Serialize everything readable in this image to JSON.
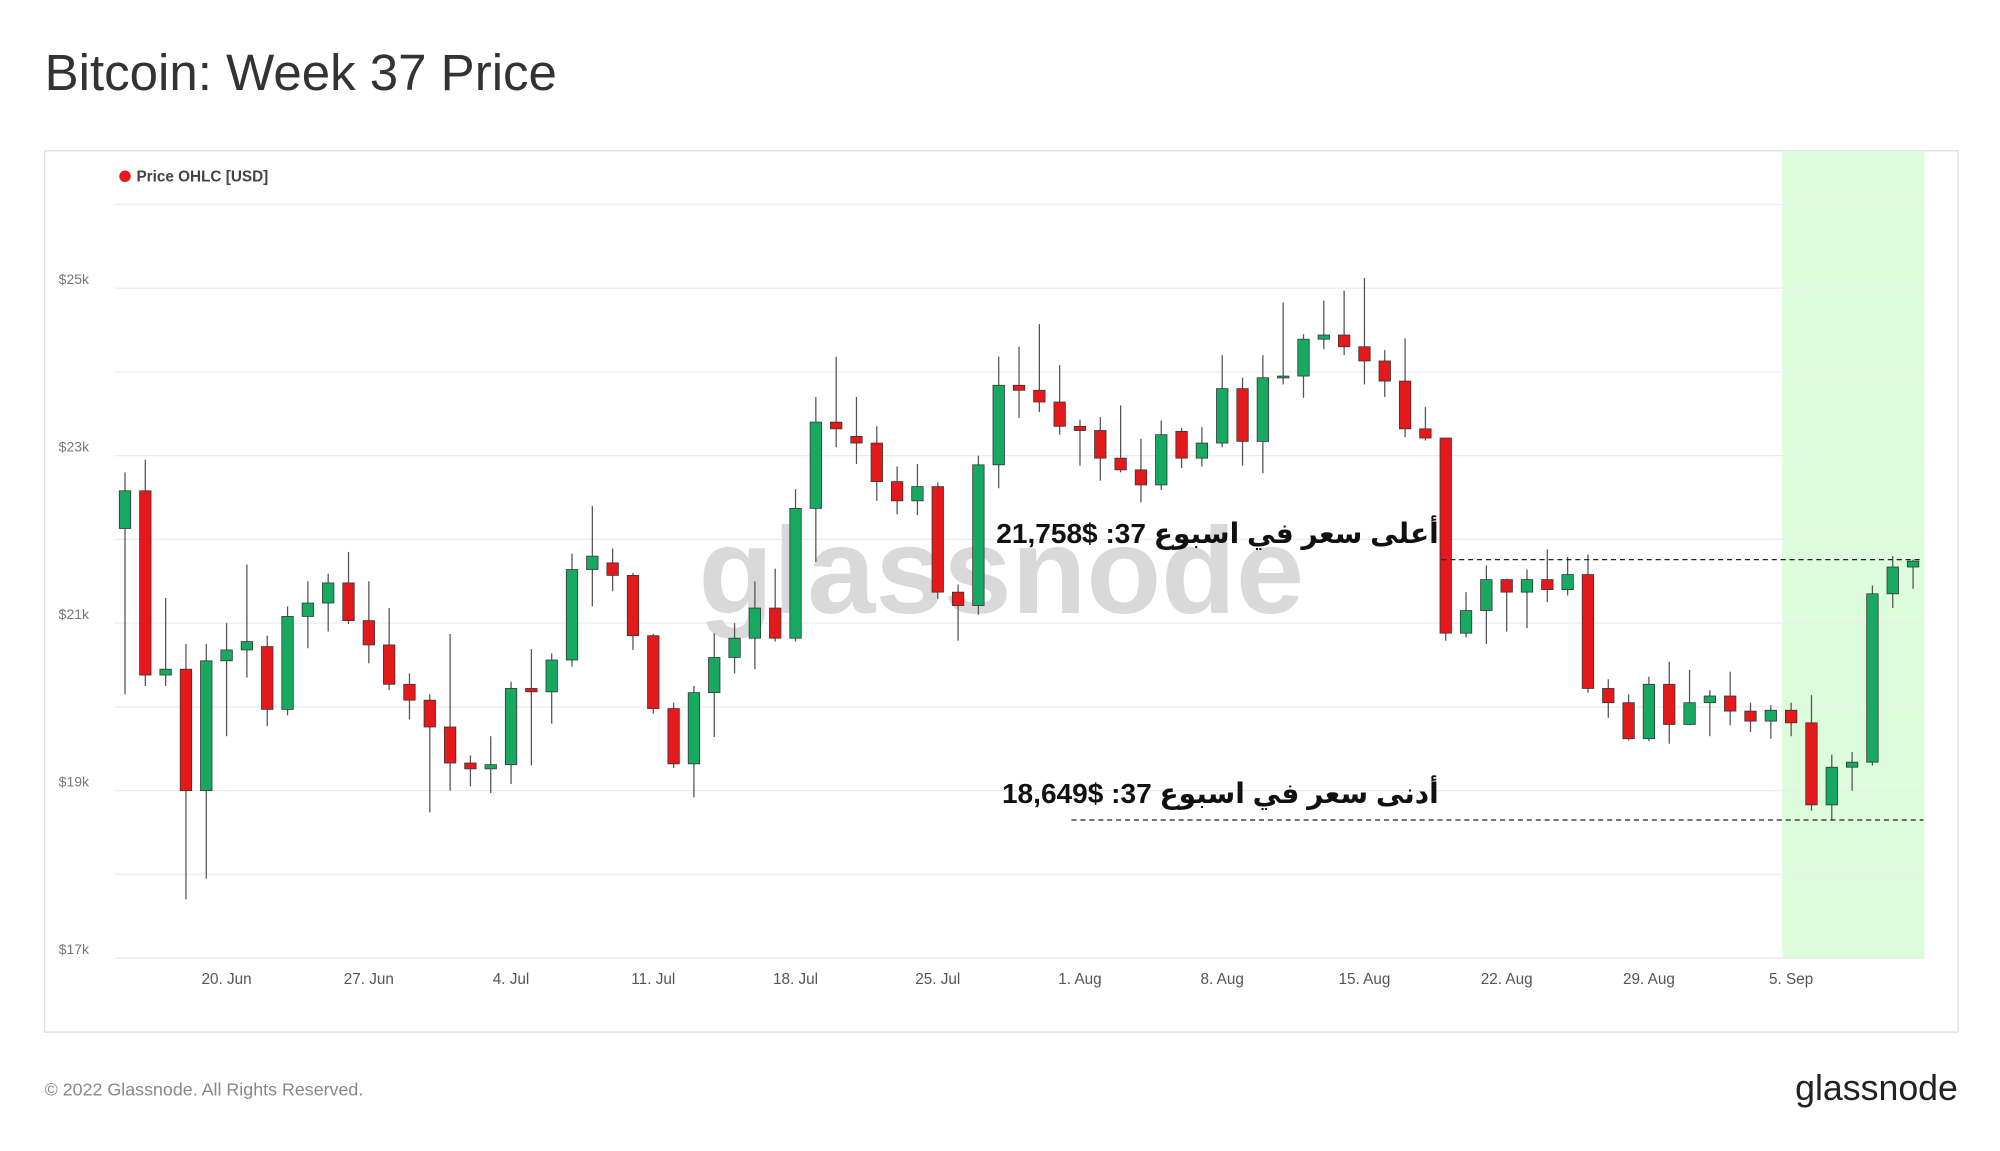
{
  "chart_data": {
    "type": "candlestick",
    "title": "Bitcoin: Week 37 Price",
    "watermark": "glassnode",
    "footer": "© 2022 Glassnode. All Rights Reserved.",
    "logo": "glassnode",
    "categories": [
      null,
      null,
      null,
      null,
      null,
      "20. Jun",
      null,
      null,
      null,
      null,
      null,
      null,
      "27. Jun",
      null,
      null,
      null,
      null,
      null,
      null,
      "4. Jul",
      null,
      null,
      null,
      null,
      null,
      null,
      "11. Jul",
      null,
      null,
      null,
      null,
      null,
      null,
      "18. Jul",
      null,
      null,
      null,
      null,
      null,
      null,
      "25. Jul",
      null,
      null,
      null,
      null,
      null,
      null,
      "1. Aug",
      null,
      null,
      null,
      null,
      null,
      null,
      "8. Aug",
      null,
      null,
      null,
      null,
      null,
      null,
      "15. Aug",
      null,
      null,
      null,
      null,
      null,
      null,
      "22. Aug",
      null,
      null,
      null,
      null,
      null,
      null,
      "29. Aug",
      null,
      null,
      null,
      null,
      null,
      null,
      "5. Sep",
      null,
      null,
      null,
      null,
      null,
      null
    ],
    "series": [
      {
        "name": "Price OHLC [USD]",
        "color": "#e3191c",
        "up_color": "#17a862",
        "open": [
          22130,
          22580,
          20380,
          20450,
          19000,
          20550,
          20680,
          20720,
          19970,
          21080,
          21240,
          21480,
          21030,
          20740,
          20270,
          20080,
          19760,
          19330,
          19260,
          19310,
          20220,
          20180,
          20560,
          21640,
          21720,
          21570,
          20850,
          19980,
          19320,
          20170,
          20590,
          20820,
          21180,
          20820,
          22370,
          23400,
          23230,
          23150,
          22690,
          22460,
          22630,
          21370,
          21210,
          22890,
          23840,
          23780,
          23640,
          23350,
          23300,
          22970,
          22830,
          22650,
          23290,
          22970,
          23150,
          23800,
          23170,
          23930,
          23950,
          24390,
          24440,
          24300,
          24130,
          23890,
          23320,
          23210,
          20880,
          21150,
          21520,
          21370,
          21520,
          21400,
          21580,
          20220,
          20050,
          19620,
          20270,
          19790,
          20050,
          20130,
          19950,
          19830,
          19960,
          19810,
          18830,
          19280,
          19340,
          21350,
          21670
        ],
        "high": [
          22800,
          22950,
          21300,
          20750,
          20750,
          21000,
          21700,
          20850,
          21200,
          21500,
          21590,
          21850,
          21500,
          21180,
          20400,
          20150,
          20870,
          19420,
          19650,
          20300,
          20690,
          20640,
          21830,
          22400,
          21890,
          21600,
          20870,
          20050,
          20250,
          20880,
          21000,
          21500,
          21650,
          22600,
          23700,
          24180,
          23700,
          23350,
          22870,
          22900,
          22680,
          21460,
          23000,
          24180,
          24300,
          24570,
          24080,
          23430,
          23460,
          23600,
          23200,
          23420,
          23330,
          23340,
          24200,
          23930,
          24200,
          24830,
          24450,
          24850,
          24970,
          25120,
          24260,
          24400,
          23580,
          23210,
          21370,
          21690,
          21530,
          21640,
          21880,
          21790,
          21820,
          20330,
          20150,
          20360,
          20540,
          20440,
          20200,
          20420,
          20050,
          20020,
          20050,
          20140,
          19430,
          19460,
          21450,
          21800,
          21758
        ],
        "low": [
          20150,
          20250,
          20250,
          17700,
          17950,
          19650,
          20350,
          19770,
          19900,
          20700,
          20900,
          20990,
          20520,
          20200,
          19850,
          18740,
          19000,
          19050,
          18970,
          19080,
          19300,
          19800,
          20480,
          21200,
          21380,
          20680,
          19920,
          19270,
          18920,
          19640,
          20400,
          20450,
          20780,
          20780,
          21730,
          23100,
          22900,
          22460,
          22300,
          22290,
          21290,
          20790,
          21100,
          22610,
          23450,
          23520,
          23250,
          22880,
          22700,
          22800,
          22440,
          22590,
          22850,
          22870,
          23100,
          22880,
          22790,
          23850,
          23690,
          24270,
          24200,
          23850,
          23700,
          23220,
          23180,
          20790,
          20830,
          20750,
          20900,
          20940,
          21250,
          21330,
          20170,
          19870,
          19600,
          19590,
          19560,
          19780,
          19650,
          19780,
          19700,
          19620,
          19650,
          18760,
          18649,
          19000,
          19300,
          21180,
          21410
        ],
        "close": [
          22580,
          20380,
          20450,
          19000,
          20550,
          20680,
          20780,
          19970,
          21080,
          21240,
          21480,
          21030,
          20740,
          20270,
          20080,
          19760,
          19330,
          19260,
          19310,
          20220,
          20180,
          20560,
          21640,
          21800,
          21570,
          20850,
          19980,
          19320,
          20170,
          20590,
          20820,
          21180,
          20820,
          22370,
          23400,
          23320,
          23150,
          22690,
          22460,
          22630,
          21370,
          21210,
          22890,
          23840,
          23780,
          23640,
          23350,
          23300,
          22970,
          22830,
          22650,
          23250,
          22970,
          23150,
          23800,
          23170,
          23930,
          23950,
          24390,
          24440,
          24300,
          24130,
          23890,
          23320,
          23210,
          20880,
          21150,
          21520,
          21370,
          21520,
          21400,
          21580,
          20220,
          20050,
          19620,
          20270,
          19790,
          20050,
          20130,
          19950,
          19830,
          19960,
          19810,
          18830,
          19280,
          19340,
          21350,
          21670,
          21740
        ]
      }
    ],
    "ylim": [
      17000,
      26640
    ],
    "yticks": [
      {
        "value": 17000,
        "label": "$17k"
      },
      {
        "value": 19000,
        "label": "$19k"
      },
      {
        "value": 21000,
        "label": "$21k"
      },
      {
        "value": 23000,
        "label": "$23k"
      },
      {
        "value": 25000,
        "label": "$25k"
      }
    ],
    "y_gridlines": [
      18000,
      20000,
      22000,
      24000,
      26000
    ],
    "grid": true,
    "legend": "top-left",
    "highlight": {
      "from_index": 82,
      "to_index": 88,
      "color": "#dcfcdc"
    },
    "annotations": [
      {
        "text": "أعلى سعر في اسبوع 37: $21,758",
        "value": 21758
      },
      {
        "text": "أدنى سعر في اسبوع 37: $18,649",
        "value": 18649
      }
    ]
  }
}
